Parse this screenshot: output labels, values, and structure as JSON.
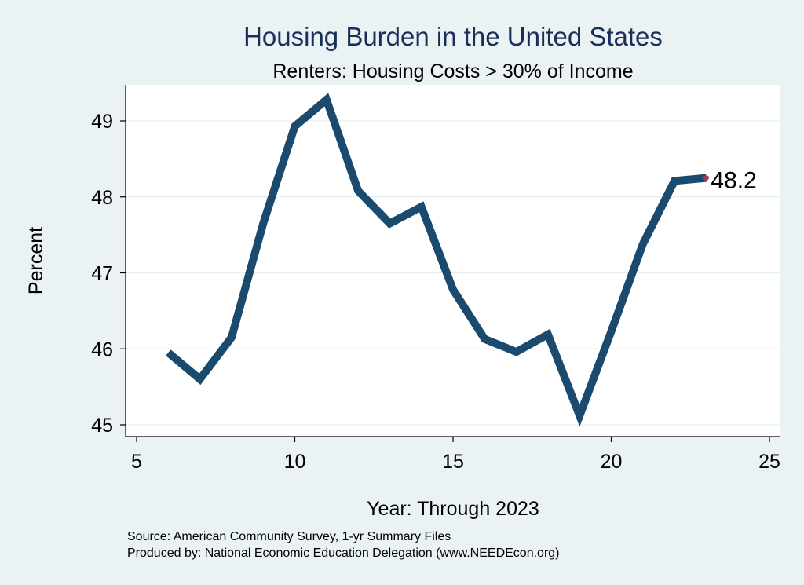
{
  "chart_data": {
    "type": "line",
    "title": "Housing Burden in the United States",
    "subtitle": "Renters: Housing Costs > 30% of Income",
    "xlabel": "Year: Through 2023",
    "ylabel": "Percent",
    "xlim": [
      5,
      25
    ],
    "ylim": [
      45,
      49.3
    ],
    "xticks": [
      5,
      10,
      15,
      20,
      25
    ],
    "yticks": [
      45,
      46,
      47,
      48,
      49
    ],
    "grid": "horizontal",
    "series": [
      {
        "x": [
          6,
          7,
          8,
          9,
          10,
          11,
          12,
          13,
          14,
          15,
          16,
          17,
          18,
          19,
          20,
          21,
          22,
          23
        ],
        "values": [
          45.95,
          45.6,
          46.15,
          47.65,
          48.93,
          49.28,
          48.08,
          47.65,
          47.87,
          46.78,
          46.13,
          45.96,
          46.19,
          45.12,
          46.23,
          47.38,
          48.21,
          48.25
        ],
        "color": "#1a4a6e"
      }
    ],
    "end_label": "48.2",
    "end_marker_color": "#a0404a",
    "notes": [
      "Source: American Community Survey, 1-yr Summary Files",
      "Produced by: National Economic Education Delegation (www.NEEDEcon.org)"
    ]
  }
}
